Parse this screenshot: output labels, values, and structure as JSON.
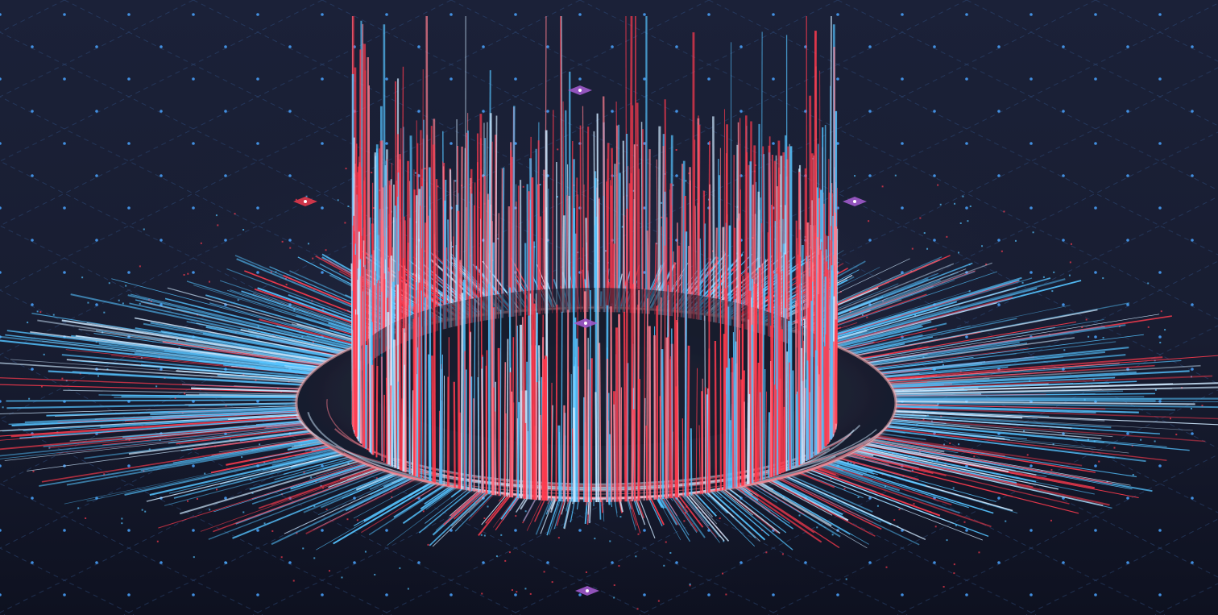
{
  "scene": {
    "subject": "radial-spike-ring",
    "palette": {
      "background_top": "#1a2036",
      "background_bottom": "#0e1120",
      "grid_line": "#2e4a7a",
      "grid_dot": "#4aa3ff",
      "spike_red": "#ff3b4e",
      "spike_pink": "#ff7f8f",
      "spike_blue": "#55c3ff",
      "spike_pale": "#cfe9ff",
      "disc": "#1c2233",
      "disc_rim_glow": "#ffb3b8",
      "marker_purple": "#a05acb",
      "marker_red": "#e2384b"
    },
    "markers": [
      {
        "name": "marker-top",
        "color": "marker_purple"
      },
      {
        "name": "marker-left",
        "color": "marker_red"
      },
      {
        "name": "marker-right",
        "color": "marker_purple"
      },
      {
        "name": "marker-center",
        "color": "marker_purple"
      },
      {
        "name": "marker-bottom",
        "color": "marker_purple"
      }
    ]
  }
}
